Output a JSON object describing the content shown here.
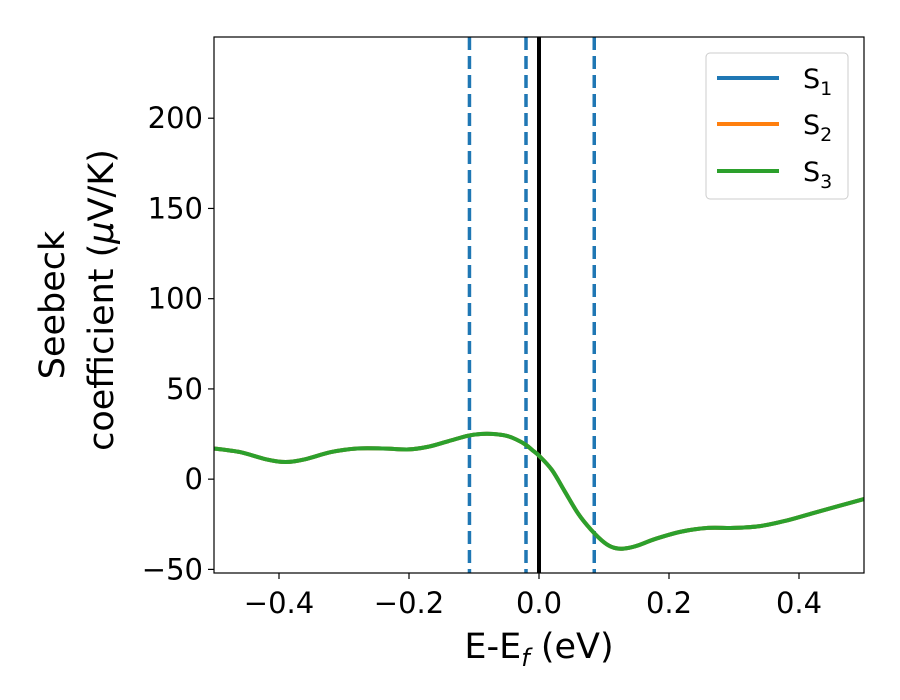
{
  "chart_data": {
    "type": "line",
    "title": "",
    "xlabel": {
      "main": "E-E",
      "sub": "f",
      "tail": " (eV)"
    },
    "ylabel": {
      "line1": "Seebeck",
      "line2": "coefficient  (",
      "mu": "μ",
      "line2_tail": "V/K)"
    },
    "xlim": [
      -0.5,
      0.5
    ],
    "ylim": [
      -52,
      245
    ],
    "xticks": [
      -0.4,
      -0.2,
      0.0,
      0.2,
      0.4
    ],
    "xtick_labels": [
      "−0.4",
      "−0.2",
      "0.0",
      "0.2",
      "0.4"
    ],
    "yticks": [
      -50,
      0,
      50,
      100,
      150,
      200
    ],
    "ytick_labels": [
      "−50",
      "0",
      "50",
      "100",
      "150",
      "200"
    ],
    "grid": false,
    "legend_position": "top-right",
    "legend": [
      {
        "base": "S",
        "sub": "1",
        "color": "#1f77b4"
      },
      {
        "base": "S",
        "sub": "2",
        "color": "#ff7f0e"
      },
      {
        "base": "S",
        "sub": "3",
        "color": "#2ca02c"
      }
    ],
    "series": [
      {
        "color": "#1f77b4",
        "x": [
          -0.5,
          -0.46,
          -0.42,
          -0.39,
          -0.36,
          -0.32,
          -0.28,
          -0.24,
          -0.2,
          -0.17,
          -0.14,
          -0.11,
          -0.09,
          -0.07,
          -0.05,
          -0.035,
          -0.02,
          -0.01,
          0.0,
          0.02,
          0.04,
          0.06,
          0.08,
          0.1,
          0.115,
          0.13,
          0.15,
          0.18,
          0.22,
          0.26,
          0.3,
          0.34,
          0.38,
          0.42,
          0.46,
          0.5
        ],
        "y": [
          17,
          15,
          11,
          9.5,
          11,
          15,
          17,
          17,
          16.5,
          18,
          21,
          24,
          25,
          25,
          24,
          22,
          19,
          16,
          13,
          5,
          -7,
          -19,
          -28,
          -35,
          -38,
          -38.5,
          -37,
          -33,
          -29,
          -27,
          -27,
          -26,
          -23,
          -19,
          -15,
          -11
        ]
      },
      {
        "color": "#ff7f0e",
        "x": [
          -0.5,
          -0.46,
          -0.42,
          -0.39,
          -0.36,
          -0.32,
          -0.28,
          -0.24,
          -0.2,
          -0.17,
          -0.14,
          -0.11,
          -0.09,
          -0.07,
          -0.05,
          -0.035,
          -0.02,
          -0.01,
          0.0,
          0.02,
          0.04,
          0.06,
          0.08,
          0.1,
          0.115,
          0.13,
          0.15,
          0.18,
          0.22,
          0.26,
          0.3,
          0.34,
          0.38,
          0.42,
          0.46,
          0.5
        ],
        "y": [
          17,
          15,
          11,
          9.5,
          11,
          15,
          17,
          17,
          16.5,
          18,
          21,
          24,
          25,
          25,
          24,
          22,
          19,
          16,
          13,
          5,
          -7,
          -19,
          -28,
          -35,
          -38,
          -38.5,
          -37,
          -33,
          -29,
          -27,
          -27,
          -26,
          -23,
          -19,
          -15,
          -11
        ]
      },
      {
        "color": "#2ca02c",
        "x": [
          -0.5,
          -0.46,
          -0.42,
          -0.39,
          -0.36,
          -0.32,
          -0.28,
          -0.24,
          -0.2,
          -0.17,
          -0.14,
          -0.11,
          -0.09,
          -0.07,
          -0.05,
          -0.035,
          -0.02,
          -0.01,
          0.0,
          0.02,
          0.04,
          0.06,
          0.08,
          0.1,
          0.115,
          0.13,
          0.15,
          0.18,
          0.22,
          0.26,
          0.3,
          0.34,
          0.38,
          0.42,
          0.46,
          0.5
        ],
        "y": [
          17,
          15,
          11,
          9.5,
          11,
          15,
          17,
          17,
          16.5,
          18,
          21,
          24,
          25,
          25,
          24,
          22,
          19,
          16,
          13,
          5,
          -7,
          -19,
          -28,
          -35,
          -38,
          -38.5,
          -37,
          -33,
          -29,
          -27,
          -27,
          -26,
          -23,
          -19,
          -15,
          -11
        ]
      }
    ],
    "vlines": [
      {
        "x": -0.107,
        "style": "dashed",
        "color": "#1f77b4"
      },
      {
        "x": -0.02,
        "style": "dashed",
        "color": "#1f77b4"
      },
      {
        "x": 0.0,
        "style": "solid",
        "color": "#000000"
      },
      {
        "x": 0.085,
        "style": "dashed",
        "color": "#1f77b4"
      }
    ]
  }
}
